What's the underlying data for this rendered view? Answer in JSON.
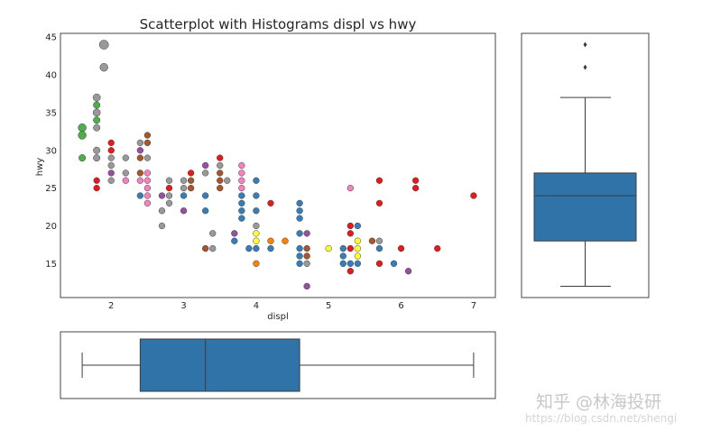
{
  "chart_data": [
    {
      "type": "scatter",
      "title": "Scatterplot with Histograms displ vs hwy",
      "xlabel": "displ",
      "ylabel": "hwy",
      "xlim": [
        1.3,
        7.3
      ],
      "ylim": [
        10.5,
        45.5
      ],
      "xticks": [
        "2",
        "3",
        "4",
        "5",
        "6",
        "7"
      ],
      "yticks": [
        "15",
        "20",
        "25",
        "30",
        "35",
        "40",
        "45"
      ],
      "grid": false,
      "colors": {
        "green": "#4daf4a",
        "red": "#e41a1c",
        "gray": "#999999",
        "brown": "#a65628",
        "pink": "#f781bf",
        "purple": "#984ea3",
        "blue": "#377eb8",
        "orange": "#ff7f00",
        "yellow": "#ffff33"
      },
      "points": [
        {
          "x": 1.6,
          "y": 33,
          "c": "green",
          "s": 1.3
        },
        {
          "x": 1.6,
          "y": 32,
          "c": "green",
          "s": 1.3
        },
        {
          "x": 1.6,
          "y": 29,
          "c": "green",
          "s": 1.1
        },
        {
          "x": 1.8,
          "y": 36,
          "c": "green",
          "s": 1.1
        },
        {
          "x": 1.8,
          "y": 34,
          "c": "green",
          "s": 1.1
        },
        {
          "x": 1.9,
          "y": 44,
          "c": "gray",
          "s": 1.5
        },
        {
          "x": 1.9,
          "y": 41,
          "c": "gray",
          "s": 1.3
        },
        {
          "x": 1.8,
          "y": 37,
          "c": "gray",
          "s": 1.2
        },
        {
          "x": 1.8,
          "y": 35,
          "c": "gray",
          "s": 1.2
        },
        {
          "x": 1.8,
          "y": 33,
          "c": "gray",
          "s": 1.1
        },
        {
          "x": 1.8,
          "y": 30,
          "c": "gray",
          "s": 1.1
        },
        {
          "x": 1.8,
          "y": 29,
          "c": "gray",
          "s": 1.1
        },
        {
          "x": 1.8,
          "y": 26,
          "c": "red",
          "s": 1
        },
        {
          "x": 1.8,
          "y": 25,
          "c": "red",
          "s": 1
        },
        {
          "x": 2.0,
          "y": 31,
          "c": "red",
          "s": 1
        },
        {
          "x": 2.0,
          "y": 30,
          "c": "red",
          "s": 1
        },
        {
          "x": 2.0,
          "y": 29,
          "c": "gray",
          "s": 1
        },
        {
          "x": 2.0,
          "y": 28,
          "c": "gray",
          "s": 1
        },
        {
          "x": 2.0,
          "y": 27,
          "c": "purple",
          "s": 1
        },
        {
          "x": 2.0,
          "y": 26,
          "c": "gray",
          "s": 1
        },
        {
          "x": 2.2,
          "y": 29,
          "c": "gray",
          "s": 1
        },
        {
          "x": 2.2,
          "y": 27,
          "c": "gray",
          "s": 1
        },
        {
          "x": 2.2,
          "y": 26,
          "c": "pink",
          "s": 1
        },
        {
          "x": 2.4,
          "y": 31,
          "c": "gray",
          "s": 1
        },
        {
          "x": 2.4,
          "y": 30,
          "c": "purple",
          "s": 1
        },
        {
          "x": 2.4,
          "y": 29,
          "c": "brown",
          "s": 1
        },
        {
          "x": 2.4,
          "y": 27,
          "c": "brown",
          "s": 1
        },
        {
          "x": 2.4,
          "y": 26,
          "c": "pink",
          "s": 1
        },
        {
          "x": 2.4,
          "y": 24,
          "c": "blue",
          "s": 1
        },
        {
          "x": 2.5,
          "y": 32,
          "c": "brown",
          "s": 1
        },
        {
          "x": 2.5,
          "y": 31,
          "c": "brown",
          "s": 1
        },
        {
          "x": 2.5,
          "y": 29,
          "c": "gray",
          "s": 1
        },
        {
          "x": 2.5,
          "y": 27,
          "c": "pink",
          "s": 1
        },
        {
          "x": 2.5,
          "y": 26,
          "c": "pink",
          "s": 1
        },
        {
          "x": 2.5,
          "y": 25,
          "c": "pink",
          "s": 1
        },
        {
          "x": 2.5,
          "y": 24,
          "c": "pink",
          "s": 1
        },
        {
          "x": 2.5,
          "y": 23,
          "c": "pink",
          "s": 1
        },
        {
          "x": 2.7,
          "y": 24,
          "c": "purple",
          "s": 1
        },
        {
          "x": 2.7,
          "y": 22,
          "c": "gray",
          "s": 1
        },
        {
          "x": 2.7,
          "y": 20,
          "c": "gray",
          "s": 1
        },
        {
          "x": 2.8,
          "y": 26,
          "c": "gray",
          "s": 1
        },
        {
          "x": 2.8,
          "y": 25,
          "c": "red",
          "s": 1
        },
        {
          "x": 2.8,
          "y": 24,
          "c": "gray",
          "s": 1
        },
        {
          "x": 2.8,
          "y": 23,
          "c": "gray",
          "s": 1
        },
        {
          "x": 3.0,
          "y": 26,
          "c": "gray",
          "s": 1
        },
        {
          "x": 3.0,
          "y": 25,
          "c": "gray",
          "s": 1
        },
        {
          "x": 3.0,
          "y": 24,
          "c": "blue",
          "s": 1
        },
        {
          "x": 3.0,
          "y": 22,
          "c": "purple",
          "s": 1
        },
        {
          "x": 3.1,
          "y": 27,
          "c": "red",
          "s": 1
        },
        {
          "x": 3.1,
          "y": 26,
          "c": "brown",
          "s": 1
        },
        {
          "x": 3.1,
          "y": 25,
          "c": "brown",
          "s": 1
        },
        {
          "x": 3.3,
          "y": 28,
          "c": "purple",
          "s": 1
        },
        {
          "x": 3.3,
          "y": 27,
          "c": "gray",
          "s": 1
        },
        {
          "x": 3.3,
          "y": 24,
          "c": "blue",
          "s": 1
        },
        {
          "x": 3.3,
          "y": 22,
          "c": "blue",
          "s": 1
        },
        {
          "x": 3.3,
          "y": 17,
          "c": "brown",
          "s": 1
        },
        {
          "x": 3.4,
          "y": 19,
          "c": "gray",
          "s": 1
        },
        {
          "x": 3.4,
          "y": 17,
          "c": "gray",
          "s": 1
        },
        {
          "x": 3.5,
          "y": 29,
          "c": "red",
          "s": 1
        },
        {
          "x": 3.5,
          "y": 28,
          "c": "gray",
          "s": 1
        },
        {
          "x": 3.5,
          "y": 27,
          "c": "brown",
          "s": 1
        },
        {
          "x": 3.5,
          "y": 26,
          "c": "brown",
          "s": 1
        },
        {
          "x": 3.5,
          "y": 25,
          "c": "brown",
          "s": 1
        },
        {
          "x": 3.6,
          "y": 26,
          "c": "gray",
          "s": 1
        },
        {
          "x": 3.7,
          "y": 19,
          "c": "purple",
          "s": 1
        },
        {
          "x": 3.7,
          "y": 18,
          "c": "blue",
          "s": 1
        },
        {
          "x": 3.8,
          "y": 28,
          "c": "pink",
          "s": 1
        },
        {
          "x": 3.8,
          "y": 27,
          "c": "pink",
          "s": 1
        },
        {
          "x": 3.8,
          "y": 26,
          "c": "pink",
          "s": 1
        },
        {
          "x": 3.8,
          "y": 25,
          "c": "pink",
          "s": 1
        },
        {
          "x": 3.8,
          "y": 24,
          "c": "blue",
          "s": 1
        },
        {
          "x": 3.8,
          "y": 23,
          "c": "blue",
          "s": 1
        },
        {
          "x": 3.8,
          "y": 22,
          "c": "blue",
          "s": 1
        },
        {
          "x": 3.8,
          "y": 21,
          "c": "blue",
          "s": 1
        },
        {
          "x": 3.9,
          "y": 17,
          "c": "blue",
          "s": 1
        },
        {
          "x": 4.0,
          "y": 26,
          "c": "blue",
          "s": 1
        },
        {
          "x": 4.0,
          "y": 24,
          "c": "blue",
          "s": 1
        },
        {
          "x": 4.0,
          "y": 22,
          "c": "blue",
          "s": 1
        },
        {
          "x": 4.0,
          "y": 20,
          "c": "gray",
          "s": 1
        },
        {
          "x": 4.0,
          "y": 19,
          "c": "yellow",
          "s": 1
        },
        {
          "x": 4.0,
          "y": 18,
          "c": "yellow",
          "s": 1
        },
        {
          "x": 4.0,
          "y": 17,
          "c": "blue",
          "s": 1
        },
        {
          "x": 4.0,
          "y": 15,
          "c": "orange",
          "s": 1
        },
        {
          "x": 4.2,
          "y": 23,
          "c": "red",
          "s": 1
        },
        {
          "x": 4.2,
          "y": 18,
          "c": "orange",
          "s": 1
        },
        {
          "x": 4.2,
          "y": 17,
          "c": "blue",
          "s": 1
        },
        {
          "x": 4.4,
          "y": 18,
          "c": "orange",
          "s": 1
        },
        {
          "x": 4.6,
          "y": 23,
          "c": "blue",
          "s": 1
        },
        {
          "x": 4.6,
          "y": 22,
          "c": "blue",
          "s": 1
        },
        {
          "x": 4.6,
          "y": 21,
          "c": "blue",
          "s": 1
        },
        {
          "x": 4.6,
          "y": 19,
          "c": "blue",
          "s": 1
        },
        {
          "x": 4.6,
          "y": 17,
          "c": "blue",
          "s": 1
        },
        {
          "x": 4.6,
          "y": 16,
          "c": "blue",
          "s": 1
        },
        {
          "x": 4.6,
          "y": 15,
          "c": "blue",
          "s": 1
        },
        {
          "x": 4.7,
          "y": 19,
          "c": "purple",
          "s": 1
        },
        {
          "x": 4.7,
          "y": 17,
          "c": "brown",
          "s": 1
        },
        {
          "x": 4.7,
          "y": 16,
          "c": "brown",
          "s": 1
        },
        {
          "x": 4.7,
          "y": 15,
          "c": "gray",
          "s": 1
        },
        {
          "x": 4.7,
          "y": 12,
          "c": "purple",
          "s": 1
        },
        {
          "x": 5.0,
          "y": 17,
          "c": "yellow",
          "s": 1
        },
        {
          "x": 5.2,
          "y": 17,
          "c": "blue",
          "s": 1
        },
        {
          "x": 5.2,
          "y": 16,
          "c": "blue",
          "s": 1
        },
        {
          "x": 5.2,
          "y": 15,
          "c": "blue",
          "s": 1
        },
        {
          "x": 5.3,
          "y": 25,
          "c": "pink",
          "s": 1
        },
        {
          "x": 5.3,
          "y": 20,
          "c": "red",
          "s": 1
        },
        {
          "x": 5.3,
          "y": 19,
          "c": "red",
          "s": 1
        },
        {
          "x": 5.3,
          "y": 17,
          "c": "red",
          "s": 1
        },
        {
          "x": 5.3,
          "y": 15,
          "c": "blue",
          "s": 1
        },
        {
          "x": 5.3,
          "y": 14,
          "c": "red",
          "s": 1
        },
        {
          "x": 5.4,
          "y": 20,
          "c": "blue",
          "s": 1
        },
        {
          "x": 5.4,
          "y": 18,
          "c": "yellow",
          "s": 1
        },
        {
          "x": 5.4,
          "y": 17,
          "c": "yellow",
          "s": 1
        },
        {
          "x": 5.4,
          "y": 16,
          "c": "yellow",
          "s": 1
        },
        {
          "x": 5.4,
          "y": 15,
          "c": "blue",
          "s": 1
        },
        {
          "x": 5.6,
          "y": 18,
          "c": "brown",
          "s": 1
        },
        {
          "x": 5.7,
          "y": 26,
          "c": "red",
          "s": 1
        },
        {
          "x": 5.7,
          "y": 23,
          "c": "red",
          "s": 1
        },
        {
          "x": 5.7,
          "y": 18,
          "c": "gray",
          "s": 1
        },
        {
          "x": 5.7,
          "y": 17,
          "c": "blue",
          "s": 1
        },
        {
          "x": 5.7,
          "y": 15,
          "c": "red",
          "s": 1
        },
        {
          "x": 5.9,
          "y": 15,
          "c": "blue",
          "s": 1
        },
        {
          "x": 6.0,
          "y": 17,
          "c": "red",
          "s": 1
        },
        {
          "x": 6.1,
          "y": 14,
          "c": "purple",
          "s": 1
        },
        {
          "x": 6.2,
          "y": 26,
          "c": "red",
          "s": 1
        },
        {
          "x": 6.2,
          "y": 25,
          "c": "red",
          "s": 1
        },
        {
          "x": 6.5,
          "y": 17,
          "c": "red",
          "s": 1
        },
        {
          "x": 7.0,
          "y": 24,
          "c": "red",
          "s": 1
        }
      ]
    },
    {
      "type": "box",
      "orientation": "vertical",
      "variable": "hwy",
      "color": "#2f73a8",
      "whisker_low": 12,
      "q1": 18,
      "median": 24,
      "q3": 27,
      "whisker_high": 37,
      "outliers": [
        41,
        44
      ]
    },
    {
      "type": "box",
      "orientation": "horizontal",
      "variable": "displ",
      "color": "#2f73a8",
      "whisker_low": 1.6,
      "q1": 2.4,
      "median": 3.3,
      "q3": 4.6,
      "whisker_high": 7.0,
      "outliers": []
    }
  ],
  "watermark": {
    "brand": "知乎 @林海投研",
    "url": "https://blog.csdn.net/shengi"
  }
}
